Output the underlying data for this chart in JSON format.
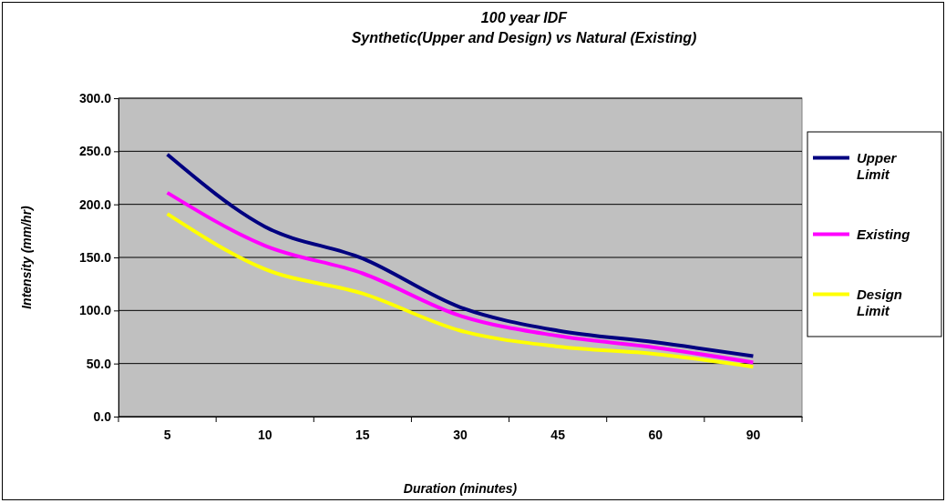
{
  "chart_data": {
    "type": "line",
    "title": "100 year IDF",
    "subtitle": "Synthetic(Upper and Design) vs Natural (Existing)",
    "xlabel": "Duration (minutes)",
    "ylabel": "Intensity (mm/hr)",
    "categories": [
      "5",
      "10",
      "15",
      "30",
      "45",
      "60",
      "90"
    ],
    "series": [
      {
        "name": "Upper Limit",
        "color": "#000080",
        "values": [
          247,
          179,
          149,
          103,
          81,
          70,
          57
        ]
      },
      {
        "name": "Existing",
        "color": "#ff00ff",
        "values": [
          211,
          161,
          135,
          95,
          76,
          65,
          51
        ]
      },
      {
        "name": "Design Limit",
        "color": "#ffff00",
        "values": [
          191,
          139,
          116,
          81,
          66,
          59,
          47
        ]
      }
    ],
    "ylim": [
      0,
      300
    ],
    "yticks": [
      {
        "value": 0,
        "label": "0.0"
      },
      {
        "value": 50,
        "label": "50.0"
      },
      {
        "value": 100,
        "label": "100.0"
      },
      {
        "value": 150,
        "label": "150.0"
      },
      {
        "value": 200,
        "label": "200.0"
      },
      {
        "value": 250,
        "label": "250.0"
      },
      {
        "value": 300,
        "label": "300.0"
      }
    ],
    "grid": "y",
    "legend": "right",
    "marker": "none",
    "line_style": "solid"
  }
}
